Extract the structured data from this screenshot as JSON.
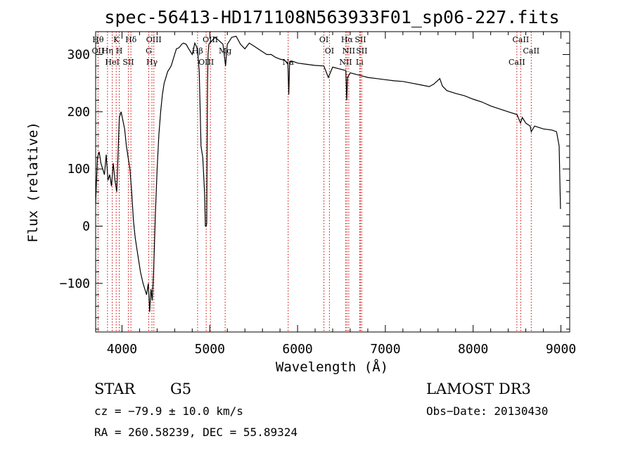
{
  "chart_data": {
    "type": "line",
    "title": "spec-56413-HD171108N563933F01_sp06-227.fits",
    "xlabel": "Wavelength (Å)",
    "ylabel": "Flux (relative)",
    "xlim": [
      3700,
      9100
    ],
    "ylim": [
      -185,
      340
    ],
    "xticks": [
      4000,
      5000,
      6000,
      7000,
      8000,
      9000
    ],
    "yticks": [
      -100,
      0,
      100,
      200,
      300
    ],
    "xtick_labels": [
      "4000",
      "5000",
      "6000",
      "7000",
      "8000",
      "9000"
    ],
    "ytick_labels": [
      "−100",
      "0",
      "100",
      "200",
      "300"
    ],
    "series": [
      {
        "x": [
          3700,
          3720,
          3740,
          3760,
          3780,
          3800,
          3820,
          3840,
          3860,
          3880,
          3900,
          3920,
          3940,
          3960,
          3970,
          3990,
          4010,
          4030,
          4050,
          4070,
          4090,
          4110,
          4130,
          4150,
          4180,
          4210,
          4240,
          4260,
          4280,
          4300,
          4315,
          4330,
          4345,
          4360,
          4380,
          4400,
          4420,
          4440,
          4460,
          4480,
          4500,
          4520,
          4540,
          4560,
          4580,
          4600,
          4620,
          4650,
          4680,
          4700,
          4730,
          4760,
          4800,
          4830,
          4860,
          4880,
          4900,
          4920,
          4940,
          4950,
          4960,
          4965,
          4970,
          4975,
          4980,
          4990,
          5000,
          5030,
          5060,
          5100,
          5150,
          5180,
          5200,
          5250,
          5300,
          5350,
          5400,
          5450,
          5500,
          5550,
          5600,
          5650,
          5700,
          5750,
          5800,
          5850,
          5890,
          5900,
          5910,
          5950,
          6000,
          6100,
          6200,
          6300,
          6350,
          6400,
          6450,
          6500,
          6550,
          6560,
          6570,
          6600,
          6650,
          6700,
          6750,
          6800,
          6900,
          7000,
          7100,
          7200,
          7300,
          7400,
          7500,
          7550,
          7600,
          7620,
          7650,
          7700,
          7800,
          7900,
          8000,
          8100,
          8200,
          8300,
          8400,
          8500,
          8540,
          8560,
          8600,
          8650,
          8662,
          8700,
          8800,
          8900,
          8950,
          8980,
          8995
        ],
        "y": [
          40,
          120,
          130,
          110,
          100,
          90,
          125,
          80,
          90,
          70,
          110,
          80,
          60,
          150,
          190,
          200,
          185,
          170,
          140,
          120,
          100,
          60,
          10,
          -20,
          -50,
          -80,
          -100,
          -110,
          -120,
          -100,
          -150,
          -110,
          -130,
          -80,
          20,
          100,
          160,
          200,
          230,
          250,
          260,
          270,
          275,
          280,
          290,
          300,
          310,
          312,
          318,
          320,
          318,
          310,
          300,
          320,
          310,
          270,
          140,
          120,
          60,
          0,
          0,
          5,
          140,
          250,
          300,
          318,
          320,
          325,
          330,
          325,
          318,
          280,
          318,
          330,
          332,
          318,
          310,
          320,
          315,
          310,
          305,
          300,
          300,
          295,
          292,
          290,
          285,
          230,
          288,
          288,
          285,
          283,
          281,
          280,
          260,
          278,
          276,
          274,
          272,
          220,
          260,
          268,
          266,
          264,
          262,
          260,
          258,
          256,
          254,
          253,
          250,
          247,
          244,
          248,
          255,
          258,
          245,
          237,
          232,
          228,
          222,
          217,
          210,
          205,
          200,
          195,
          180,
          190,
          180,
          175,
          165,
          175,
          170,
          168,
          165,
          140,
          30
        ]
      }
    ],
    "line_markers": [
      {
        "labels": [
          "Hθ",
          "OII"
        ],
        "wavelength": 3727
      },
      {
        "labels": [
          "Hη"
        ],
        "wavelength": 3835
      },
      {
        "labels": [
          "HeI"
        ],
        "wavelength": 3889
      },
      {
        "labels": [
          "K"
        ],
        "wavelength": 3934
      },
      {
        "labels": [
          "H"
        ],
        "wavelength": 3969
      },
      {
        "labels": [
          "SII"
        ],
        "wavelength": 4072
      },
      {
        "labels": [
          "Hδ"
        ],
        "wavelength": 4102
      },
      {
        "labels": [
          "G"
        ],
        "wavelength": 4305
      },
      {
        "labels": [
          "Hγ"
        ],
        "wavelength": 4341
      },
      {
        "labels": [
          "OIII"
        ],
        "wavelength": 4363
      },
      {
        "labels": [
          "Hβ"
        ],
        "wavelength": 4861
      },
      {
        "labels": [
          "OIII"
        ],
        "wavelength": 4959
      },
      {
        "labels": [
          "OIII"
        ],
        "wavelength": 5007
      },
      {
        "labels": [
          "Mg"
        ],
        "wavelength": 5175
      },
      {
        "labels": [
          "Na"
        ],
        "wavelength": 5893
      },
      {
        "labels": [
          "OI"
        ],
        "wavelength": 6300
      },
      {
        "labels": [
          "OI"
        ],
        "wavelength": 6363
      },
      {
        "labels": [
          "NII"
        ],
        "wavelength": 6548
      },
      {
        "labels": [
          "Hα"
        ],
        "wavelength": 6563
      },
      {
        "labels": [
          "NII"
        ],
        "wavelength": 6583
      },
      {
        "labels": [
          "Li"
        ],
        "wavelength": 6707
      },
      {
        "labels": [
          "SII"
        ],
        "wavelength": 6716
      },
      {
        "labels": [
          "SII"
        ],
        "wavelength": 6731
      },
      {
        "labels": [
          "CaII"
        ],
        "wavelength": 8498
      },
      {
        "labels": [
          "CaII"
        ],
        "wavelength": 8542
      },
      {
        "labels": [
          "CaII"
        ],
        "wavelength": 8662
      }
    ],
    "marker_color": "#cc0000",
    "line_color": "#000000"
  },
  "info": {
    "object_class": "STAR",
    "subclass": "G5",
    "survey": "LAMOST DR3",
    "redshift_line": "cz = −79.9 ± 10.0 km/s",
    "obs_date_line": "Obs−Date: 20130430",
    "coords_line": "RA = 260.58239, DEC =  55.89324"
  }
}
